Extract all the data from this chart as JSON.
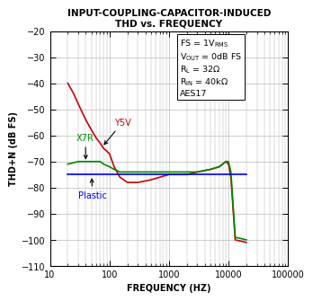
{
  "title_line1": "INPUT-COUPLING-CAPACITOR-INDUCED",
  "title_line2": "THD vs. FREQUENCY",
  "xlabel": "FREQUENCY (HZ)",
  "ylabel": "THD+N (dB FS)",
  "xlim": [
    10,
    100000
  ],
  "ylim": [
    -110,
    -20
  ],
  "yticks": [
    -110,
    -100,
    -90,
    -80,
    -70,
    -60,
    -50,
    -40,
    -30,
    -20
  ],
  "annotation_text": "FS = 1VₛMS\nVOUT = 0dB FS\nRL = 32Ω\nRIN = 40kΩ\nAES17",
  "y5v": {
    "x": [
      20,
      25,
      30,
      40,
      50,
      60,
      70,
      80,
      90,
      100,
      120,
      150,
      200,
      300,
      500,
      700,
      1000,
      2000,
      3000,
      5000,
      7000,
      8000,
      9000,
      10000,
      11000,
      13000,
      20000
    ],
    "y": [
      -40,
      -44,
      -48,
      -54,
      -58,
      -61,
      -63,
      -65,
      -66,
      -67,
      -72,
      -76,
      -78,
      -78,
      -77,
      -76,
      -75,
      -75,
      -74,
      -73,
      -72,
      -71,
      -70,
      -71,
      -76,
      -100,
      -101
    ]
  },
  "x7r": {
    "x": [
      20,
      30,
      40,
      50,
      60,
      70,
      80,
      100,
      120,
      150,
      200,
      300,
      500,
      700,
      1000,
      2000,
      3000,
      5000,
      7000,
      8000,
      9000,
      10000,
      11000,
      13000,
      20000
    ],
    "y": [
      -71,
      -70,
      -70,
      -70,
      -70,
      -70,
      -71,
      -72,
      -73,
      -74,
      -74,
      -74,
      -74,
      -74,
      -74,
      -74,
      -74,
      -73,
      -72,
      -71,
      -70,
      -70,
      -74,
      -99,
      -100
    ]
  },
  "plastic": {
    "x": [
      20,
      30,
      50,
      100,
      200,
      500,
      1000,
      2000,
      5000,
      7000,
      9000,
      10000,
      20000
    ],
    "y": [
      -75,
      -75,
      -75,
      -75,
      -75,
      -75,
      -75,
      -75,
      -75,
      -75,
      -75,
      -75,
      -75
    ]
  },
  "y5v_color": "#cc0000",
  "x7r_color": "#008800",
  "plastic_color": "#0000ee",
  "background_color": "#ffffff",
  "title_fontsize": 7.5,
  "label_fontsize": 7,
  "tick_fontsize": 7,
  "annotation_fontsize": 6.8,
  "linewidth": 1.2
}
